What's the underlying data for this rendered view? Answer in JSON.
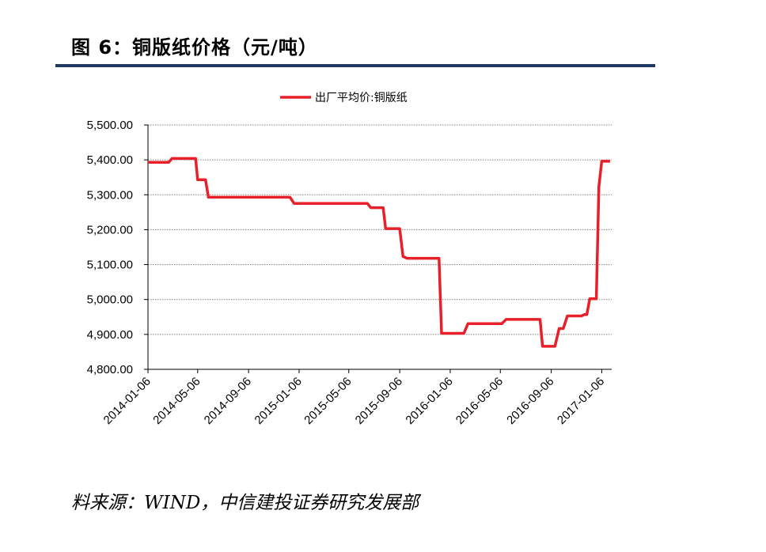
{
  "figure": {
    "title": "图 6：铜版纸价格（元/吨）",
    "source": "料来源：WIND，中信建投证券研究发展部"
  },
  "colors": {
    "series": "#e8202a",
    "title_rule": "#1f3864",
    "grid": "#808080"
  },
  "chart_data": {
    "type": "line",
    "legend_position": "top-center",
    "grid": true,
    "ylim": [
      4800,
      5500
    ],
    "y_ticks": [
      "5,500.00",
      "5,400.00",
      "5,300.00",
      "5,200.00",
      "5,100.00",
      "5,000.00",
      "4,900.00",
      "4,800.00"
    ],
    "x_ticks": [
      "2014-01-06",
      "2014-05-06",
      "2014-09-06",
      "2015-01-06",
      "2015-05-06",
      "2015-09-06",
      "2016-01-06",
      "2016-05-06",
      "2016-09-06",
      "2017-01-06"
    ],
    "series": [
      {
        "name": "出厂平均价:铜版纸",
        "points": [
          [
            "2014-01-06",
            5393
          ],
          [
            "2014-02-25",
            5393
          ],
          [
            "2014-03-05",
            5404
          ],
          [
            "2014-05-01",
            5404
          ],
          [
            "2014-05-06",
            5343
          ],
          [
            "2014-05-25",
            5343
          ],
          [
            "2014-06-01",
            5293
          ],
          [
            "2014-12-15",
            5293
          ],
          [
            "2014-12-25",
            5275
          ],
          [
            "2015-06-20",
            5275
          ],
          [
            "2015-06-28",
            5263
          ],
          [
            "2015-07-28",
            5263
          ],
          [
            "2015-08-03",
            5203
          ],
          [
            "2015-09-06",
            5203
          ],
          [
            "2015-09-14",
            5123
          ],
          [
            "2015-09-24",
            5118
          ],
          [
            "2015-12-10",
            5118
          ],
          [
            "2015-12-16",
            4903
          ],
          [
            "2016-02-08",
            4903
          ],
          [
            "2016-02-18",
            4931
          ],
          [
            "2016-05-10",
            4931
          ],
          [
            "2016-05-20",
            4943
          ],
          [
            "2016-08-10",
            4943
          ],
          [
            "2016-08-16",
            4866
          ],
          [
            "2016-09-15",
            4866
          ],
          [
            "2016-09-25",
            4917
          ],
          [
            "2016-10-05",
            4917
          ],
          [
            "2016-10-15",
            4953
          ],
          [
            "2016-11-18",
            4953
          ],
          [
            "2016-11-25",
            4957
          ],
          [
            "2016-12-01",
            4957
          ],
          [
            "2016-12-08",
            5002
          ],
          [
            "2016-12-24",
            5002
          ],
          [
            "2016-12-30",
            5323
          ],
          [
            "2017-01-06",
            5396
          ],
          [
            "2017-01-26",
            5396
          ]
        ]
      }
    ]
  }
}
